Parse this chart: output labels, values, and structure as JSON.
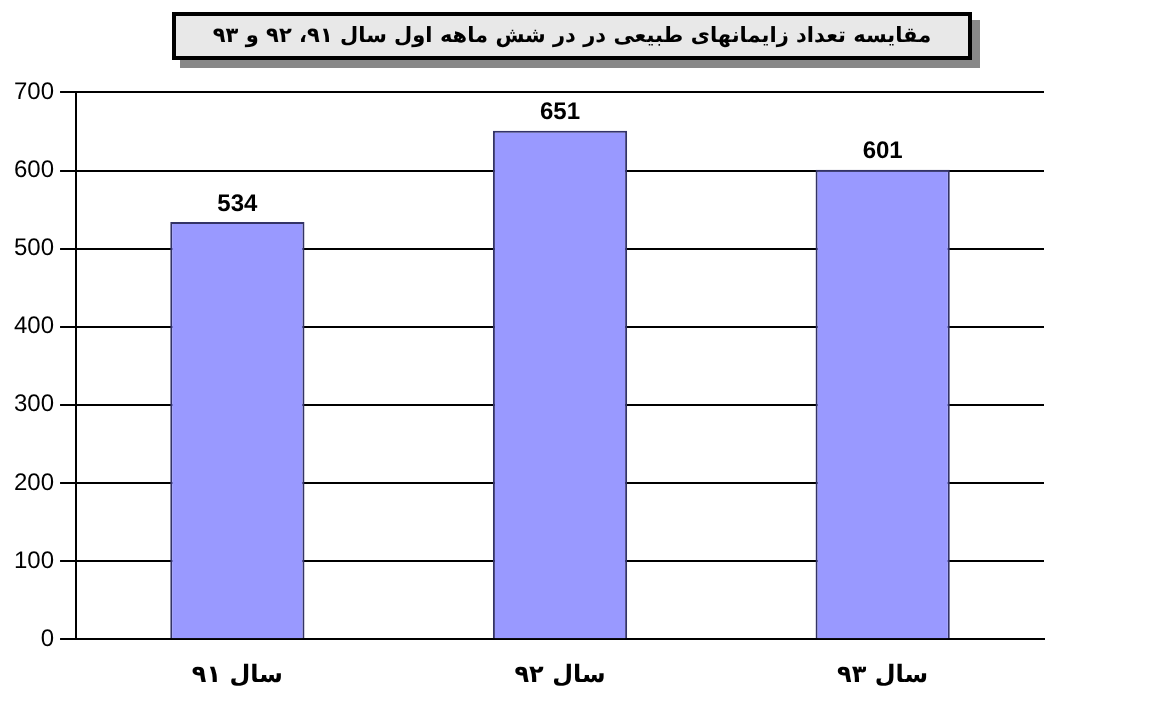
{
  "chart_data": {
    "type": "bar",
    "title": "مقایسه تعداد زایمانهای طبیعی در در شش ماهه اول سال ۹۱، ۹۲ و ۹۳",
    "categories": [
      "سال ۹۱",
      "سال ۹۲",
      "سال ۹۳"
    ],
    "values": [
      534,
      651,
      601
    ],
    "color": "#9999ff",
    "ylim": [
      0,
      700
    ],
    "yticks": [
      0,
      100,
      200,
      300,
      400,
      500,
      600,
      700
    ],
    "grid": "y",
    "data_labels": true
  }
}
